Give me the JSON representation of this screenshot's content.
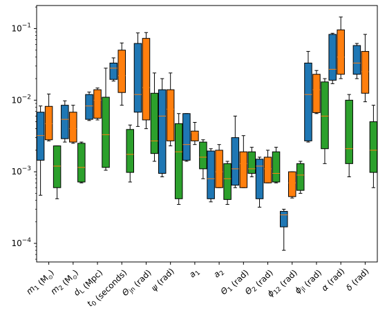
{
  "chart_data": {
    "type": "boxplot",
    "y_scale": "log",
    "ylim": [
      5.5e-05,
      0.21
    ],
    "y_ticks": [
      {
        "value": 0.0001,
        "base": "10",
        "exp": "−4"
      },
      {
        "value": 0.001,
        "base": "10",
        "exp": "−3"
      },
      {
        "value": 0.01,
        "base": "10",
        "exp": "−2"
      },
      {
        "value": 0.1,
        "base": "10",
        "exp": "−1"
      }
    ],
    "categories": [
      {
        "main": "m",
        "sub": "1",
        "unit": " (M",
        "unit_sub": "⊙",
        "tail": ")"
      },
      {
        "main": "m",
        "sub": "2",
        "unit": " (M",
        "unit_sub": "⊙",
        "tail": ")"
      },
      {
        "main": "d",
        "sub": "L",
        "unit": " (Mpc)",
        "unit_sub": "",
        "tail": ""
      },
      {
        "main": "t",
        "sub": "0",
        "unit": " (seconds)",
        "unit_sub": "",
        "tail": ""
      },
      {
        "main": "Θ",
        "sub": "jn",
        "unit": " (rad)",
        "unit_sub": "",
        "tail": ""
      },
      {
        "main": "ψ",
        "sub": "",
        "unit": " (rad)",
        "unit_sub": "",
        "tail": ""
      },
      {
        "main": "a",
        "sub": "1",
        "unit": "",
        "unit_sub": "",
        "tail": ""
      },
      {
        "main": "a",
        "sub": "2",
        "unit": "",
        "unit_sub": "",
        "tail": ""
      },
      {
        "main": "Θ",
        "sub": "1",
        "unit": " (rad)",
        "unit_sub": "",
        "tail": ""
      },
      {
        "main": "Θ",
        "sub": "2",
        "unit": " (rad)",
        "unit_sub": "",
        "tail": ""
      },
      {
        "main": "ϕ",
        "sub": "12",
        "unit": " (rad)",
        "unit_sub": "",
        "tail": ""
      },
      {
        "main": "ϕ",
        "sub": "jl",
        "unit": " (rad)",
        "unit_sub": "",
        "tail": ""
      },
      {
        "main": "α",
        "sub": "",
        "unit": " (rad)",
        "unit_sub": "",
        "tail": ""
      },
      {
        "main": "δ",
        "sub": "",
        "unit": " (rad)",
        "unit_sub": "",
        "tail": ""
      }
    ],
    "median_color": "#ff7f0e",
    "series": [
      {
        "color": "#1f77b4",
        "boxes": [
          {
            "whislo": 0.00047,
            "q1": 0.00145,
            "med": 0.0032,
            "q3": 0.0068,
            "whishi": 0.0083
          },
          {
            "whislo": 0.0026,
            "q1": 0.0029,
            "med": 0.0054,
            "q3": 0.0085,
            "whishi": 0.0098
          },
          {
            "whislo": 0.0052,
            "q1": 0.0054,
            "med": 0.0083,
            "q3": 0.012,
            "whishi": 0.013
          },
          {
            "whislo": 0.0185,
            "q1": 0.0195,
            "med": 0.028,
            "q3": 0.033,
            "whishi": 0.039
          },
          {
            "whislo": 0.0043,
            "q1": 0.0068,
            "med": 0.012,
            "q3": 0.062,
            "whishi": 0.087
          },
          {
            "whislo": 0.00085,
            "q1": 0.00095,
            "med": 0.006,
            "q3": 0.014,
            "whishi": 0.02
          },
          {
            "whislo": 0.0014,
            "q1": 0.00145,
            "med": 0.0024,
            "q3": 0.0065,
            "whishi": 0.0065
          },
          {
            "whislo": 0.00038,
            "q1": 0.00042,
            "med": 0.0008,
            "q3": 0.00195,
            "whishi": 0.0021
          },
          {
            "whislo": 0.0006,
            "q1": 0.00065,
            "med": 0.0011,
            "q3": 0.003,
            "whishi": 0.006
          },
          {
            "whislo": 0.00032,
            "q1": 0.00042,
            "med": 0.0012,
            "q3": 0.0015,
            "whishi": 0.0016
          },
          {
            "whislo": 8e-05,
            "q1": 0.00017,
            "med": 0.00025,
            "q3": 0.00028,
            "whishi": 0.0003
          },
          {
            "whislo": 0.0026,
            "q1": 0.0027,
            "med": 0.012,
            "q3": 0.033,
            "whishi": 0.048
          },
          {
            "whislo": 0.017,
            "q1": 0.019,
            "med": 0.027,
            "q3": 0.083,
            "whishi": 0.086
          },
          {
            "whislo": 0.02,
            "q1": 0.023,
            "med": 0.033,
            "q3": 0.058,
            "whishi": 0.062
          }
        ]
      },
      {
        "color": "#ff7f0e",
        "boxes": [
          {
            "whislo": 0.0027,
            "q1": 0.0028,
            "med": 0.0047,
            "q3": 0.0082,
            "whishi": 0.0122
          },
          {
            "whislo": 0.0025,
            "q1": 0.0026,
            "med": 0.004,
            "q3": 0.0068,
            "whishi": 0.0085
          },
          {
            "whislo": 0.0053,
            "q1": 0.0056,
            "med": 0.01,
            "q3": 0.014,
            "whishi": 0.0148
          },
          {
            "whislo": 0.0085,
            "q1": 0.0128,
            "med": 0.022,
            "q3": 0.05,
            "whishi": 0.063
          },
          {
            "whislo": 0.004,
            "q1": 0.0053,
            "med": 0.015,
            "q3": 0.073,
            "whishi": 0.088
          },
          {
            "whislo": 0.0023,
            "q1": 0.0027,
            "med": 0.0075,
            "q3": 0.014,
            "whishi": 0.024
          },
          {
            "whislo": 0.0024,
            "q1": 0.0027,
            "med": 0.0035,
            "q3": 0.0037,
            "whishi": 0.0049
          },
          {
            "whislo": 0.0006,
            "q1": 0.0006,
            "med": 0.001,
            "q3": 0.002,
            "whishi": 0.0024
          },
          {
            "whislo": 0.0006,
            "q1": 0.0006,
            "med": 0.0013,
            "q3": 0.0019,
            "whishi": 0.0032
          },
          {
            "whislo": 0.0007,
            "q1": 0.0007,
            "med": 0.0011,
            "q3": 0.0016,
            "whishi": 0.002
          },
          {
            "whislo": 0.00043,
            "q1": 0.00045,
            "med": 0.0007,
            "q3": 0.001,
            "whishi": 0.001
          },
          {
            "whislo": 0.0065,
            "q1": 0.0067,
            "med": 0.014,
            "q3": 0.023,
            "whishi": 0.026
          },
          {
            "whislo": 0.02,
            "q1": 0.023,
            "med": 0.04,
            "q3": 0.096,
            "whishi": 0.145
          },
          {
            "whislo": 0.0095,
            "q1": 0.0125,
            "med": 0.025,
            "q3": 0.048,
            "whishi": 0.083
          }
        ]
      },
      {
        "color": "#2ca02c",
        "boxes": [
          {
            "whislo": 0.00042,
            "q1": 0.0006,
            "med": 0.0012,
            "q3": 0.0023,
            "whishi": 0.0023
          },
          {
            "whislo": 0.0007,
            "q1": 0.00072,
            "med": 0.00115,
            "q3": 0.0025,
            "whishi": 0.0026
          },
          {
            "whislo": 0.00105,
            "q1": 0.00115,
            "med": 0.0033,
            "q3": 0.011,
            "whishi": 0.028
          },
          {
            "whislo": 0.00072,
            "q1": 0.00098,
            "med": 0.00175,
            "q3": 0.0039,
            "whishi": 0.0045
          },
          {
            "whislo": 0.0014,
            "q1": 0.0018,
            "med": 0.0027,
            "q3": 0.0125,
            "whishi": 0.024
          },
          {
            "whislo": 0.00035,
            "q1": 0.00042,
            "med": 0.0019,
            "q3": 0.0047,
            "whishi": 0.0065
          },
          {
            "whislo": 0.0008,
            "q1": 0.0011,
            "med": 0.0016,
            "q3": 0.0026,
            "whishi": 0.0028
          },
          {
            "whislo": 0.00035,
            "q1": 0.00041,
            "med": 0.0008,
            "q3": 0.0013,
            "whishi": 0.0014
          },
          {
            "whislo": 0.00085,
            "q1": 0.00095,
            "med": 0.0011,
            "q3": 0.0019,
            "whishi": 0.0022
          },
          {
            "whislo": 0.0007,
            "q1": 0.00072,
            "med": 0.00095,
            "q3": 0.0019,
            "whishi": 0.0022
          },
          {
            "whislo": 0.0005,
            "q1": 0.00055,
            "med": 0.0009,
            "q3": 0.0013,
            "whishi": 0.0014
          },
          {
            "whislo": 0.0013,
            "q1": 0.0021,
            "med": 0.006,
            "q3": 0.018,
            "whishi": 0.02
          },
          {
            "whislo": 0.00085,
            "q1": 0.0013,
            "med": 0.0021,
            "q3": 0.01,
            "whishi": 0.012
          },
          {
            "whislo": 0.0006,
            "q1": 0.00098,
            "med": 0.002,
            "q3": 0.005,
            "whishi": 0.0085
          }
        ]
      }
    ]
  }
}
